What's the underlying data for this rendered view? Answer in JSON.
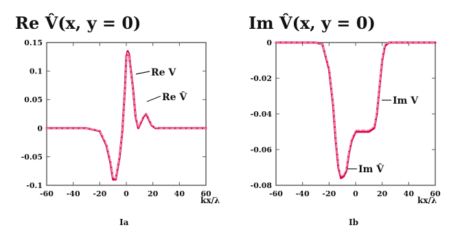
{
  "chart_data": [
    {
      "type": "line",
      "title": "Re V̂(x, y = 0)",
      "xlabel": "kx/λ",
      "ylabel": "",
      "xlim": [
        -60,
        60
      ],
      "ylim": [
        -0.1,
        0.15
      ],
      "x_ticks": [
        "-60",
        "-40",
        "-20",
        "0",
        "20",
        "40",
        "60"
      ],
      "y_ticks": [
        "0.15",
        "0.1",
        "0.05",
        "0",
        "-0.05",
        "-0.1"
      ],
      "caption": "Ia",
      "series": [
        {
          "name": "Re V",
          "color": "#e0004f",
          "x": [
            -60,
            -30,
            -20,
            -15,
            -12,
            -10,
            -8,
            -5,
            -3,
            -1,
            0,
            1,
            2,
            3,
            5,
            7,
            9,
            11,
            13,
            15,
            17,
            19,
            22,
            25,
            30,
            40,
            60
          ],
          "y": [
            0,
            0,
            -0.005,
            -0.03,
            -0.06,
            -0.09,
            -0.09,
            -0.05,
            -0.005,
            0.07,
            0.125,
            0.135,
            0.13,
            0.11,
            0.07,
            0.02,
            0.0,
            0.01,
            0.02,
            0.025,
            0.015,
            0.005,
            0,
            0,
            0,
            0,
            0
          ]
        },
        {
          "name": "Re V̂",
          "color": "#e6a0b4",
          "x": [
            -60,
            -30,
            -20,
            -15,
            -12,
            -10,
            -8,
            -5,
            -3,
            -1,
            0,
            1,
            2,
            3,
            5,
            7,
            9,
            11,
            13,
            15,
            17,
            19,
            22,
            25,
            30,
            40,
            60
          ],
          "y": [
            0,
            0,
            -0.004,
            -0.028,
            -0.057,
            -0.087,
            -0.088,
            -0.048,
            -0.003,
            0.068,
            0.122,
            0.132,
            0.128,
            0.108,
            0.068,
            0.022,
            0.002,
            0.012,
            0.022,
            0.027,
            0.017,
            0.006,
            0.001,
            0,
            0,
            0,
            0
          ]
        }
      ],
      "annotations": [
        "Re V",
        "Re V̂"
      ]
    },
    {
      "type": "line",
      "title": "Im V̂(x, y = 0)",
      "xlabel": "kx/λ",
      "ylabel": "",
      "xlim": [
        -60,
        60
      ],
      "ylim": [
        -0.08,
        0
      ],
      "x_ticks": [
        "-60",
        "-40",
        "-20",
        "0",
        "20",
        "40",
        "60"
      ],
      "y_ticks": [
        "0",
        "-0.02",
        "-0.04",
        "-0.06",
        "-0.08"
      ],
      "caption": "Ib",
      "series": [
        {
          "name": "Im V",
          "color": "#e0004f",
          "x": [
            -60,
            -30,
            -25,
            -20,
            -17,
            -15,
            -13,
            -11,
            -9,
            -7,
            -5,
            -3,
            0,
            5,
            10,
            14,
            16,
            18,
            20,
            22,
            25,
            30,
            40,
            60
          ],
          "y": [
            0,
            0,
            -0.001,
            -0.015,
            -0.035,
            -0.055,
            -0.07,
            -0.076,
            -0.075,
            -0.072,
            -0.062,
            -0.055,
            -0.05,
            -0.05,
            -0.05,
            -0.048,
            -0.04,
            -0.025,
            -0.01,
            -0.002,
            0,
            0,
            0,
            0
          ]
        },
        {
          "name": "Im V̂",
          "color": "#e6a0b4",
          "x": [
            -60,
            -30,
            -25,
            -20,
            -17,
            -15,
            -13,
            -11,
            -9,
            -7,
            -5,
            -3,
            0,
            5,
            10,
            14,
            16,
            18,
            20,
            22,
            25,
            30,
            40,
            60
          ],
          "y": [
            0,
            0,
            -0.001,
            -0.014,
            -0.034,
            -0.054,
            -0.069,
            -0.075,
            -0.074,
            -0.071,
            -0.061,
            -0.054,
            -0.049,
            -0.049,
            -0.049,
            -0.047,
            -0.039,
            -0.024,
            -0.009,
            -0.001,
            0,
            0,
            0,
            0
          ]
        }
      ],
      "annotations": [
        "Im V",
        "Im V̂"
      ]
    }
  ]
}
